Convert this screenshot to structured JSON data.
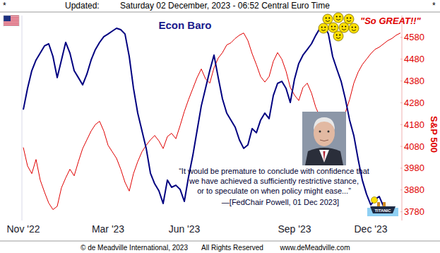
{
  "header": {
    "left_mark": "*",
    "label": "Updated:",
    "timestamp": "Saturday 02 December, 2023 - 06:52 Central Euro Time",
    "right_mark": "*"
  },
  "footer": [
    "© de Meadville International, 2023",
    "All Rights Reserved",
    "www.deMeadville.com"
  ],
  "chart_data": {
    "type": "line",
    "title": "Econ Baro",
    "y2label": "S&P 500",
    "annotations": {
      "praise": "\"So GREAT!!\"",
      "quote": [
        "“It would be premature to conclude with confidence that",
        "we have achieved a sufficiently restrictive stance,",
        "or to speculate on when policy might ease...”"
      ],
      "attribution": "—[FedChair Powell, 01 Dec 2023]",
      "ship": "TITANIC"
    },
    "categories": [
      "Nov '22",
      null,
      null,
      null,
      null,
      null,
      null,
      null,
      null,
      null,
      null,
      null,
      null,
      null,
      null,
      null,
      null,
      null,
      null,
      null,
      "Mar '23",
      null,
      null,
      null,
      null,
      null,
      null,
      null,
      null,
      null,
      null,
      null,
      null,
      null,
      null,
      null,
      null,
      null,
      "Jun '23",
      null,
      null,
      null,
      null,
      null,
      null,
      null,
      null,
      null,
      null,
      null,
      null,
      null,
      null,
      null,
      null,
      null,
      null,
      null,
      null,
      null,
      null,
      null,
      null,
      null,
      "Sep '23",
      null,
      null,
      null,
      null,
      null,
      null,
      null,
      null,
      null,
      null,
      null,
      null,
      null,
      null,
      null,
      null,
      null,
      "Dec '23",
      null,
      null,
      null,
      null,
      null,
      null,
      null
    ],
    "series": [
      {
        "color": "#000080",
        "values": [
          54.1,
          64.5,
          73.1,
          78.3,
          81.7,
          85.2,
          86.2,
          80.0,
          69.7,
          78.3,
          86.9,
          81.7,
          73.1,
          69.7,
          66.2,
          71.4,
          78.3,
          83.4,
          86.9,
          89.7,
          91.0,
          92.4,
          93.8,
          93.1,
          91.0,
          80.0,
          64.5,
          52.4,
          43.8,
          35.2,
          23.1,
          17.9,
          14.5,
          8.3,
          19.7,
          16.2,
          17.2,
          15.2,
          9.3,
          21.4,
          31.7,
          43.8,
          55.9,
          64.5,
          73.1,
          80.7,
          69.7,
          59.3,
          52.4,
          49.0,
          45.5,
          39.3,
          35.2,
          36.9,
          44.8,
          42.8,
          49.0,
          52.4,
          49.7,
          61.0,
          66.9,
          67.9,
          64.5,
          57.6,
          69.0,
          76.6,
          80.7,
          83.4,
          86.2,
          90.3,
          93.8,
          95.5,
          91.0,
          80.0,
          73.8,
          67.9,
          59.3,
          49.0,
          41.4,
          30.0,
          19.7,
          12.8,
          7.6,
          10.3,
          11.7,
          6.9,
          null,
          null,
          null,
          null
        ]
      },
      {
        "color": "#e00000",
        "axis": "y2",
        "values": [
          4075,
          3990,
          3955,
          4020,
          3925,
          3870,
          3820,
          3790,
          3805,
          3890,
          3935,
          3975,
          3945,
          4010,
          4070,
          4110,
          4150,
          4180,
          4195,
          4150,
          4085,
          4055,
          4025,
          3975,
          3915,
          3875,
          3955,
          4010,
          4055,
          4085,
          4110,
          4130,
          4105,
          4070,
          4125,
          4140,
          4115,
          4175,
          4240,
          4295,
          4345,
          4395,
          4435,
          4390,
          4370,
          4440,
          4485,
          4510,
          4545,
          4555,
          4575,
          4590,
          4600,
          4565,
          4505,
          4455,
          4400,
          4375,
          4400,
          4470,
          4510,
          4480,
          4425,
          4350,
          4315,
          4290,
          4350,
          4370,
          4325,
          4260,
          4215,
          4195,
          4170,
          4135,
          4110,
          4140,
          4235,
          4295,
          4370,
          4420,
          4455,
          4480,
          4505,
          4525,
          4535,
          4550,
          4565,
          4575,
          4590,
          4600
        ]
      }
    ],
    "ylim": [
      0,
      100
    ],
    "yticks": [],
    "y2lim": [
      3740,
      4680
    ],
    "y2ticks": [
      3780,
      3880,
      3980,
      4080,
      4180,
      4280,
      4380,
      4480,
      4580
    ],
    "grid": false
  }
}
